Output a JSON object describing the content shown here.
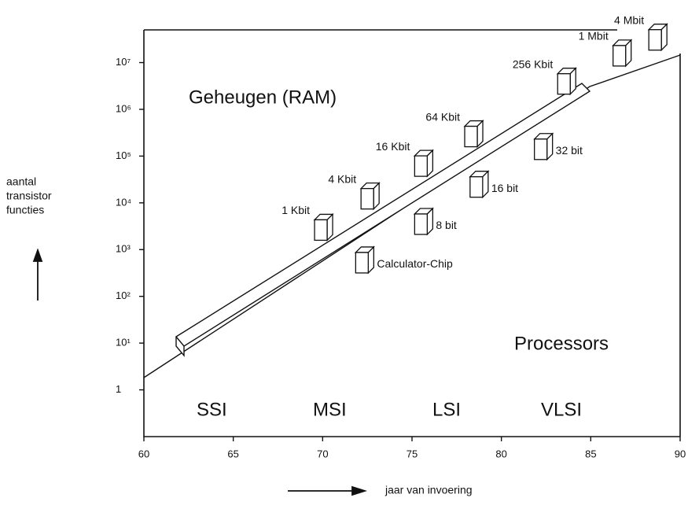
{
  "chart_data": {
    "type": "scatter",
    "log_y": true,
    "xlim": [
      60,
      90
    ],
    "ylim": [
      0.1,
      50000000
    ],
    "xticks": [
      60,
      65,
      70,
      75,
      80,
      85,
      90
    ],
    "yticks": [
      1,
      {
        "value": 10,
        "label": "10¹"
      },
      {
        "value": 100,
        "label": "10²"
      },
      {
        "value": 1000,
        "label": "10³"
      },
      {
        "value": 10000,
        "label": "10⁴"
      },
      {
        "value": 100000,
        "label": "10⁵"
      },
      {
        "value": 1000000,
        "label": "10⁶"
      },
      {
        "value": 10000000,
        "label": "10⁷"
      }
    ],
    "ylabel": [
      "aantal",
      "transistor",
      "functies"
    ],
    "xlabel": "jaar van invoering",
    "series": [
      {
        "name": "Geheugen (RAM)",
        "color": "#ffffff",
        "x": [
          69.9,
          72.5,
          75.5,
          78.3,
          83.5,
          86.6,
          88.6
        ],
        "values": [
          3000,
          14000,
          70000,
          300000,
          4000000,
          16000000,
          35000000
        ],
        "point_labels": [
          "1 Kbit",
          "4 Kbit",
          "16 Kbit",
          "64 Kbit",
          "256 Kbit",
          "1 Mbit",
          "4 Mbit"
        ]
      },
      {
        "name": "Processors",
        "color": "#ffffff",
        "x": [
          72.2,
          75.5,
          78.6,
          82.2
        ],
        "values": [
          600,
          4000,
          25000,
          160000
        ],
        "point_labels": [
          "Calculator-Chip",
          "8 bit",
          "16 bit",
          "32 bit"
        ]
      }
    ],
    "annotations": [
      "SSI",
      "MSI",
      "LSI",
      "VLSI"
    ]
  }
}
